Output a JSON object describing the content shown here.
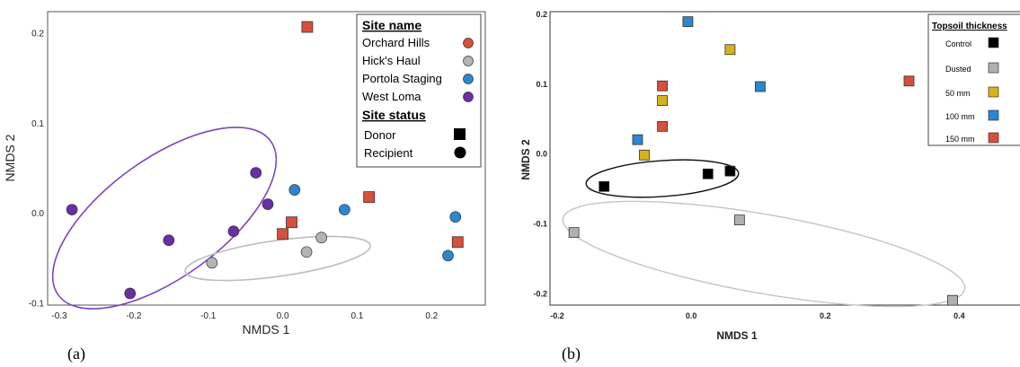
{
  "colors": {
    "orchard_hills": "#d7503b",
    "hicks_haul": "#b4b4b4",
    "portola_staging": "#2c86d0",
    "west_loma": "#6a2ea5",
    "control": "#000000",
    "dusted": "#b0b0b0",
    "mm50": "#d8b21b",
    "mm100": "#2c86d0",
    "mm150": "#d7503b"
  },
  "panel_a": {
    "label": "(a)",
    "legend": {
      "title1": "Site name",
      "title2": "Site status",
      "sites": [
        "Orchard Hills",
        "Hick's Haul",
        "Portola Staging",
        "West Loma"
      ],
      "statuses": [
        "Donor",
        "Recipient"
      ]
    }
  },
  "panel_b": {
    "label": "(b)",
    "legend": {
      "title": "Topsoil thickness",
      "items": [
        "Control",
        "Dusted",
        "50 mm",
        "100 mm",
        "150 mm"
      ]
    }
  },
  "chart_data": [
    {
      "type": "scatter",
      "title": "",
      "xlabel": "NMDS 1",
      "ylabel": "NMDS 2",
      "xlim": [
        -0.3,
        0.26
      ],
      "ylim": [
        -0.1,
        0.22
      ],
      "xticks": [
        "-0.3",
        "-0.2",
        "-0.1",
        "0.0",
        "0.1",
        "0.2"
      ],
      "yticks": [
        "-0.1",
        "0.0",
        "0.1",
        "0.2"
      ],
      "series": [
        {
          "name": "Orchard Hills",
          "marker": "square",
          "points": [
            [
              0.033,
              0.207
            ],
            [
              0.116,
              0.018
            ],
            [
              0.012,
              -0.01
            ],
            [
              0.0,
              -0.023
            ],
            [
              0.235,
              -0.032
            ]
          ]
        },
        {
          "name": "Hick's Haul",
          "marker": "circle",
          "points": [
            [
              -0.095,
              -0.055
            ],
            [
              0.032,
              -0.043
            ],
            [
              0.052,
              -0.027
            ]
          ]
        },
        {
          "name": "Portola Staging",
          "marker": "circle",
          "points": [
            [
              0.016,
              0.026
            ],
            [
              0.083,
              0.004
            ],
            [
              0.232,
              -0.004
            ],
            [
              0.222,
              -0.047
            ]
          ]
        },
        {
          "name": "West Loma",
          "marker": "circle",
          "points": [
            [
              -0.283,
              0.004
            ],
            [
              -0.205,
              -0.089
            ],
            [
              -0.153,
              -0.03
            ],
            [
              -0.066,
              -0.02
            ],
            [
              -0.036,
              0.045
            ],
            [
              -0.02,
              0.01
            ]
          ]
        }
      ]
    },
    {
      "type": "scatter",
      "title": "",
      "xlabel": "NMDS 1",
      "ylabel": "NMDS 2",
      "xlim": [
        -0.2,
        0.5
      ],
      "ylim": [
        -0.24,
        0.22
      ],
      "xticks": [
        "-0.2",
        "0.0",
        "0.2",
        "0.4"
      ],
      "yticks": [
        "-0.2",
        "-0.1",
        "0.0",
        "0.1",
        "0.2"
      ],
      "series": [
        {
          "name": "Control",
          "marker": "square",
          "points": [
            [
              -0.13,
              -0.047
            ],
            [
              0.025,
              -0.029
            ],
            [
              0.058,
              -0.025
            ]
          ]
        },
        {
          "name": "Dusted",
          "marker": "square",
          "points": [
            [
              -0.175,
              -0.113
            ],
            [
              0.072,
              -0.095
            ],
            [
              0.39,
              -0.21
            ]
          ]
        },
        {
          "name": "50 mm",
          "marker": "square",
          "points": [
            [
              0.058,
              0.149
            ],
            [
              -0.043,
              0.076
            ],
            [
              -0.07,
              -0.002
            ]
          ]
        },
        {
          "name": "100 mm",
          "marker": "square",
          "points": [
            [
              -0.005,
              0.189
            ],
            [
              0.103,
              0.096
            ],
            [
              -0.08,
              0.02
            ]
          ]
        },
        {
          "name": "150 mm",
          "marker": "square",
          "points": [
            [
              -0.043,
              0.097
            ],
            [
              -0.043,
              0.039
            ],
            [
              0.325,
              0.104
            ]
          ]
        }
      ]
    }
  ]
}
